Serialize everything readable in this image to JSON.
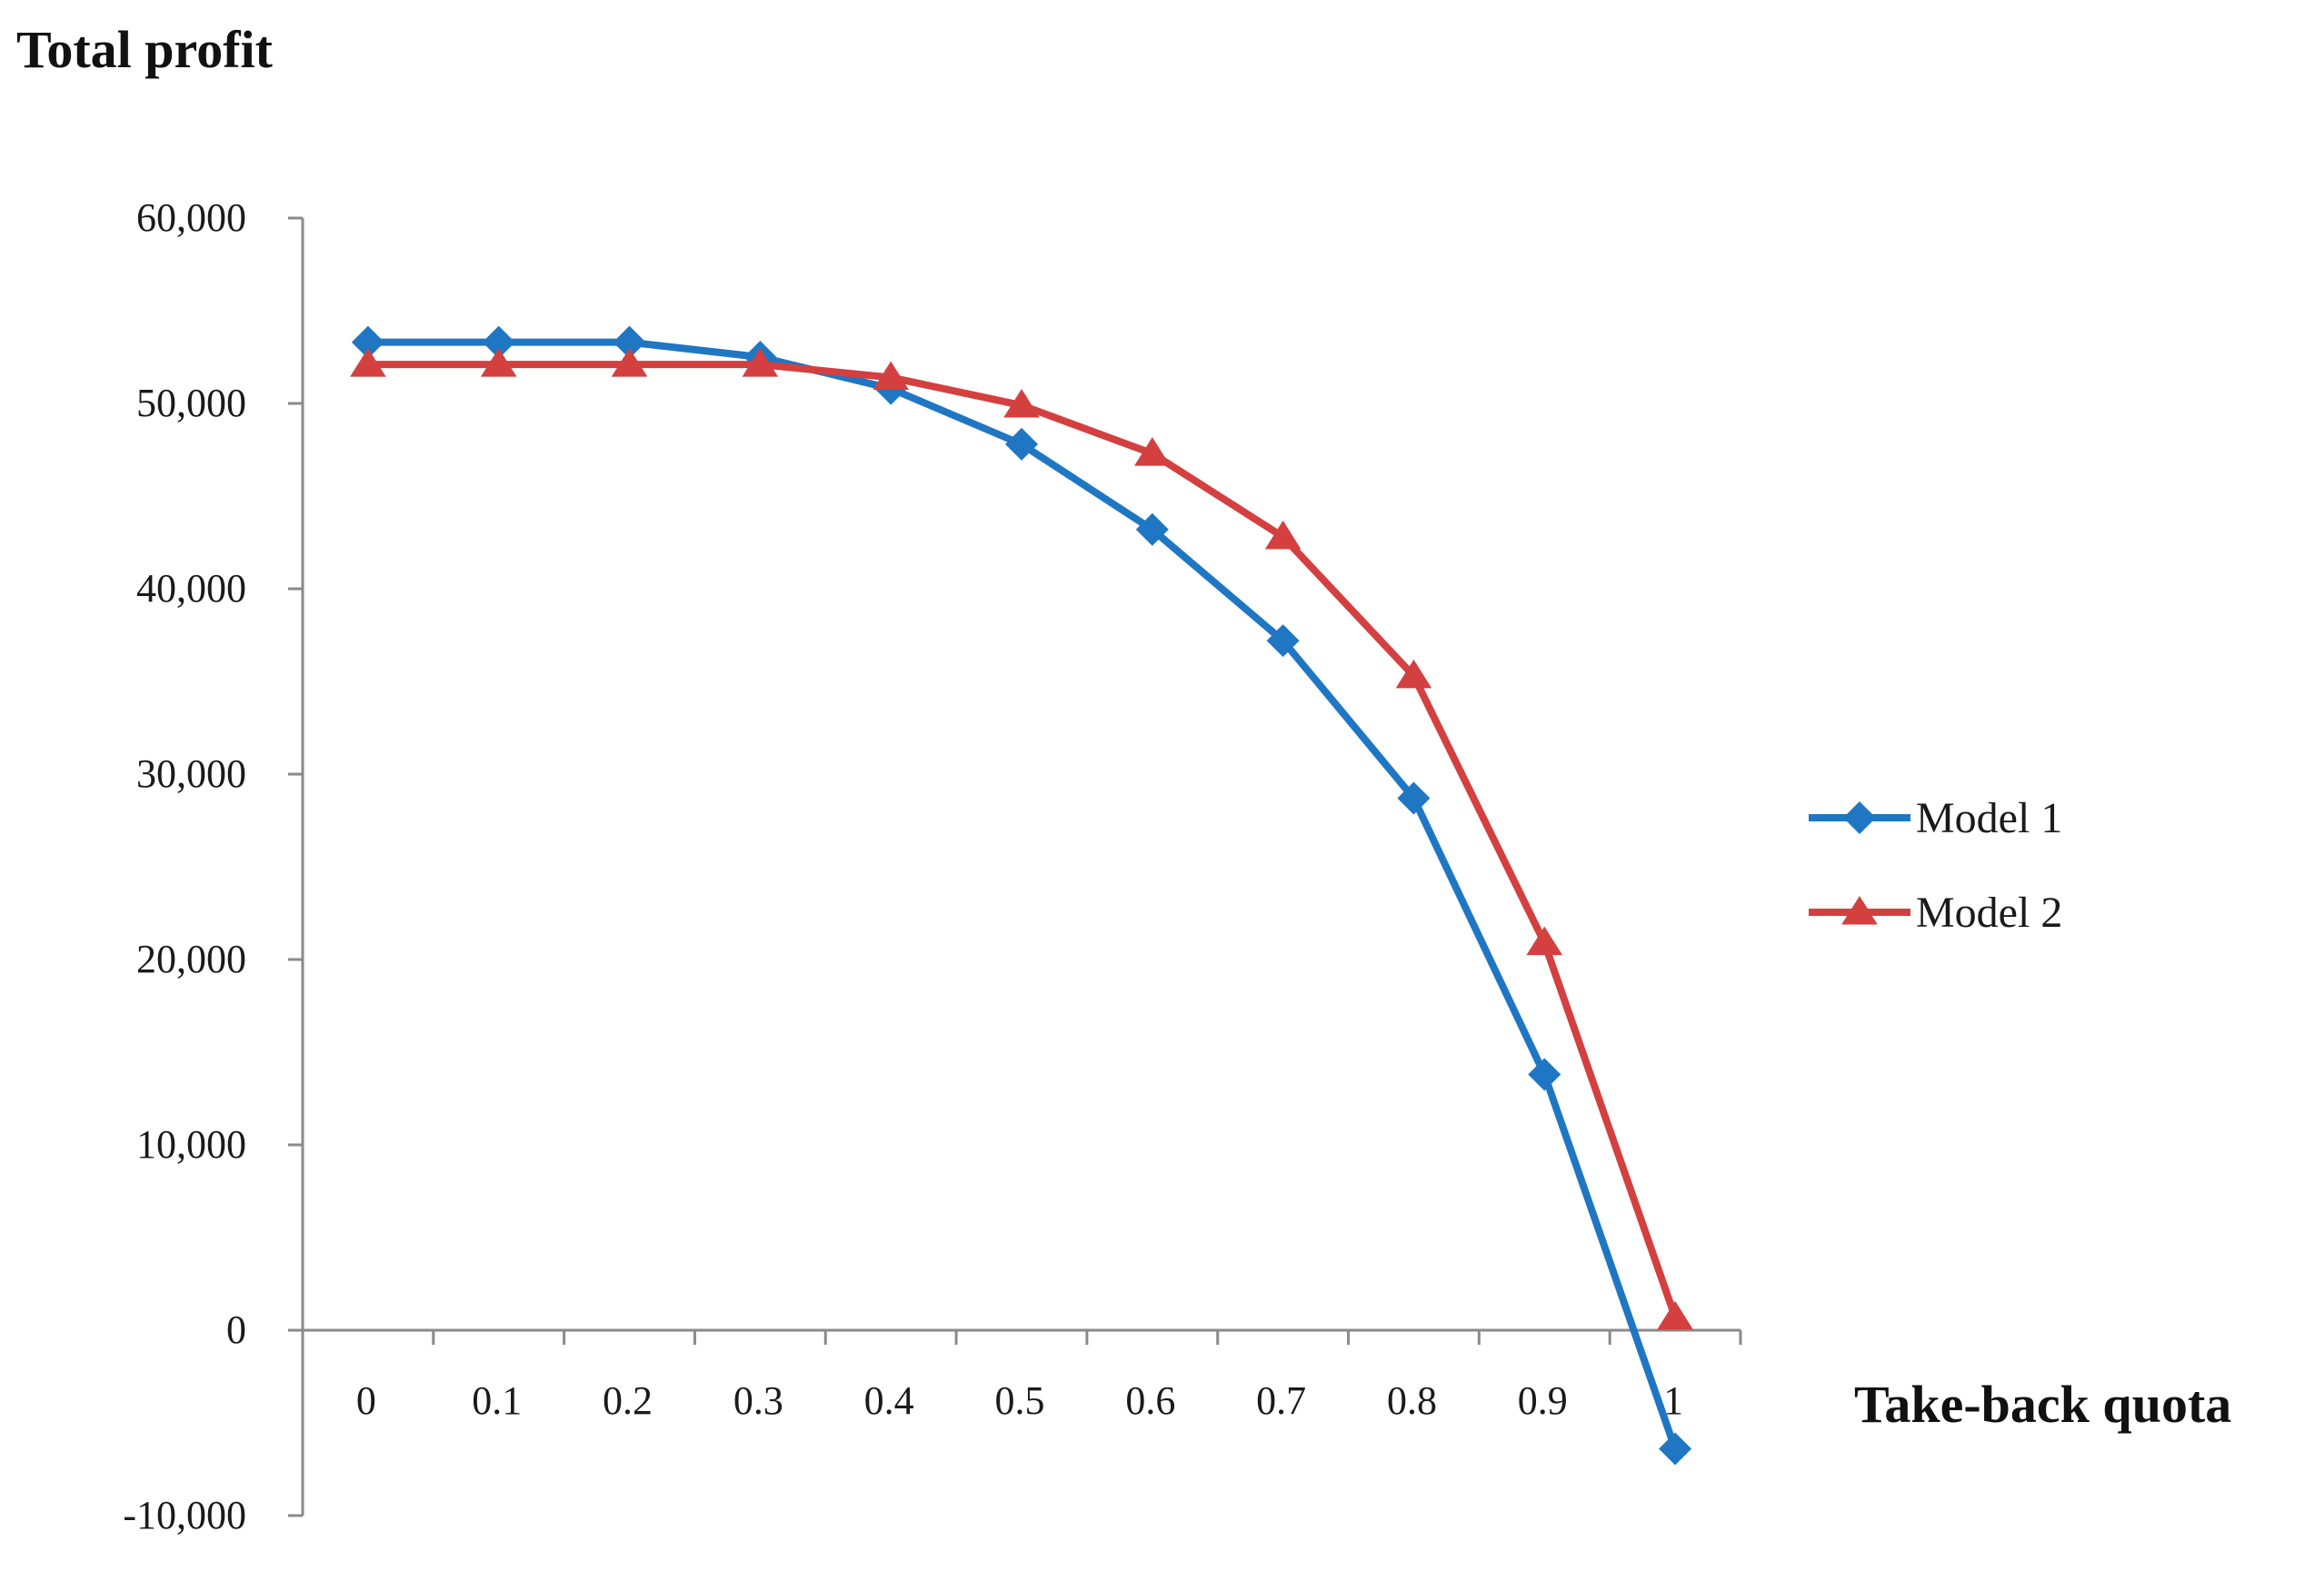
{
  "chart_data": {
    "type": "line",
    "title": "",
    "ylabel": "Total profit",
    "xlabel": "Take-back quota",
    "categories": [
      "0",
      "0.1",
      "0.2",
      "0.3",
      "0.4",
      "0.5",
      "0.6",
      "0.7",
      "0.8",
      "0.9",
      "1"
    ],
    "yticks": [
      "-10,000",
      "0",
      "10,000",
      "20,000",
      "30,000",
      "40,000",
      "50,000",
      "60,000"
    ],
    "ylim": [
      -10000,
      60000
    ],
    "grid": false,
    "legend_position": "right",
    "series": [
      {
        "name": "Model 1",
        "color": "#1f77c4",
        "marker": "diamond",
        "values": [
          53300,
          53300,
          53300,
          52500,
          50800,
          47800,
          43200,
          37200,
          28700,
          13800,
          -6400
        ]
      },
      {
        "name": "Model 2",
        "color": "#d43f3f",
        "marker": "triangle",
        "values": [
          52100,
          52100,
          52100,
          52100,
          51400,
          49900,
          47300,
          42800,
          35300,
          20900,
          700
        ]
      }
    ]
  }
}
